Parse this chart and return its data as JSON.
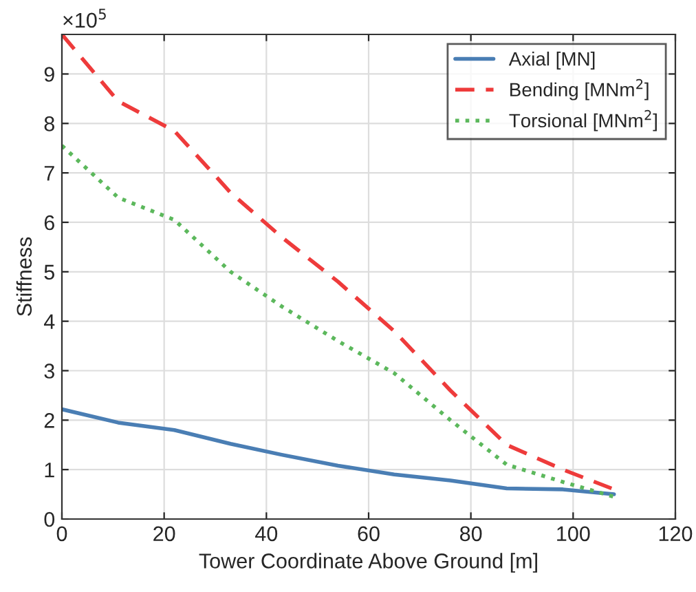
{
  "chart_data": {
    "type": "line",
    "xlabel": "Tower Coordinate Above Ground [m]",
    "ylabel": "Stiffness",
    "x": [
      0,
      11,
      22,
      33,
      43,
      54,
      65,
      76,
      87,
      98,
      108
    ],
    "series": [
      {
        "name": "Axial [MN]",
        "color": "#4a7eb4",
        "line_style": "solid",
        "values": [
          2.22,
          1.95,
          1.8,
          1.52,
          1.3,
          1.08,
          0.9,
          0.78,
          0.62,
          0.6,
          0.5
        ]
      },
      {
        "name": "Bending [MNm$^{2}$]",
        "color": "#ee3b3b",
        "line_style": "dashed",
        "values": [
          9.8,
          8.45,
          7.85,
          6.6,
          5.7,
          4.8,
          3.8,
          2.6,
          1.5,
          1.0,
          0.6
        ]
      },
      {
        "name": "Torsional [MNm$^{2}$]",
        "color": "#5cb85c",
        "line_style": "dotted",
        "values": [
          7.55,
          6.5,
          6.05,
          5.0,
          4.3,
          3.6,
          2.95,
          2.0,
          1.1,
          0.75,
          0.45
        ]
      }
    ],
    "xlim": [
      0,
      120
    ],
    "xticks": [
      0,
      20,
      40,
      60,
      80,
      100,
      120
    ],
    "ylim": [
      0,
      9.8
    ],
    "yticks": [
      0,
      1,
      2,
      3,
      4,
      5,
      6,
      7,
      8,
      9
    ],
    "annotations": [
      "×10$^{5}$"
    ],
    "grid": true,
    "legend": "top right"
  }
}
